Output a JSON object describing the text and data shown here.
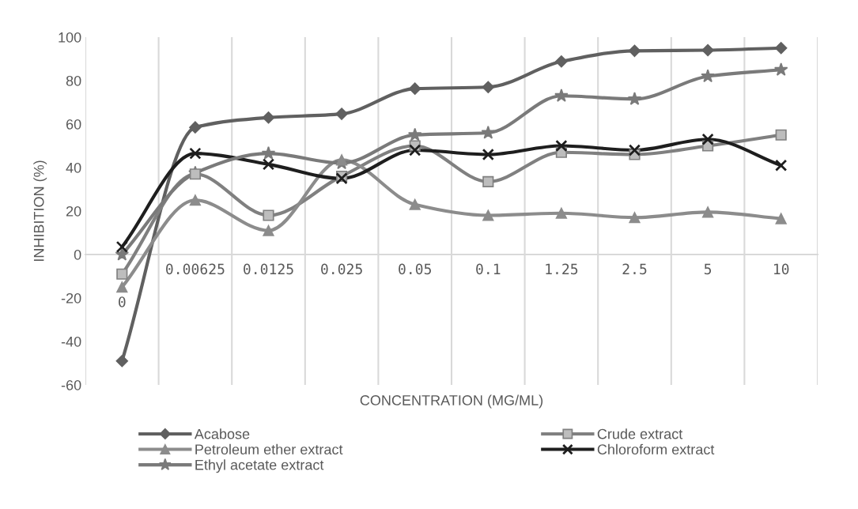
{
  "chart_data": {
    "type": "line",
    "xlabel": "CONCENTRATION (MG/ML)",
    "ylabel": "INHIBITION (%)",
    "categories": [
      "0",
      "0.00625",
      "0.0125",
      "0.025",
      "0.05",
      "0.1",
      "1.25",
      "2.5",
      "5",
      "10"
    ],
    "ylim": [
      -60,
      100
    ],
    "yticks": [
      -60,
      -40,
      -20,
      0,
      20,
      40,
      60,
      80,
      100
    ],
    "grid": "x",
    "legend": "bottom",
    "series": [
      {
        "name": "Acabose",
        "color": "#606060",
        "marker": "diamond",
        "values": [
          -49,
          58.5,
          63,
          64.7,
          76.3,
          77,
          88.8,
          93.7,
          94,
          95
        ]
      },
      {
        "name": "Crude extract",
        "color": "#808080",
        "marker": "square",
        "values": [
          -9,
          37,
          18,
          36,
          50,
          33.5,
          47,
          46,
          50,
          55
        ]
      },
      {
        "name": "Petroleum ether extract",
        "color": "#8c8c8c",
        "marker": "triangle",
        "values": [
          -15,
          25,
          11,
          43.5,
          23,
          18,
          19,
          17,
          19.5,
          16.5
        ]
      },
      {
        "name": "Chloroform extract",
        "color": "#1e1e1e",
        "marker": "cross",
        "values": [
          3.5,
          46.5,
          41.5,
          35,
          48,
          46,
          50,
          48,
          53,
          41
        ]
      },
      {
        "name": "Ethyl acetate extract",
        "color": "#7a7a7a",
        "marker": "star",
        "values": [
          0,
          37.5,
          46.5,
          42,
          55,
          56,
          73,
          71.5,
          82,
          85
        ]
      }
    ]
  }
}
